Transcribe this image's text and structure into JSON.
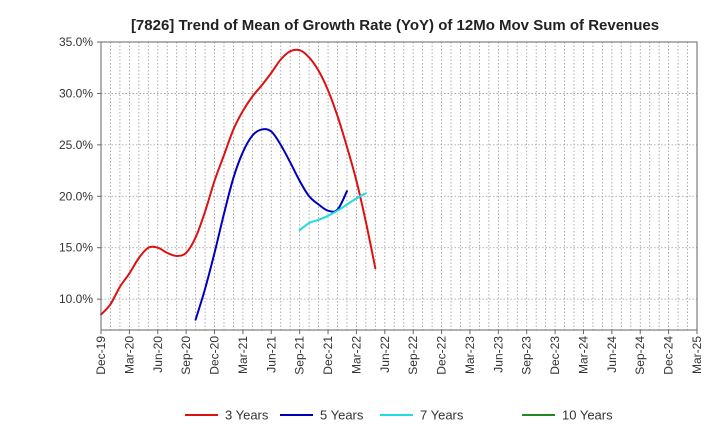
{
  "chart_data": {
    "type": "line",
    "title": "[7826]  Trend of Mean of Growth Rate (YoY) of 12Mo Mov Sum of Revenues",
    "xlabel": "",
    "ylabel": "",
    "x_tick_labels": [
      "Dec-19",
      "Mar-20",
      "Jun-20",
      "Sep-20",
      "Dec-20",
      "Mar-21",
      "Jun-21",
      "Sep-21",
      "Dec-21",
      "Mar-22",
      "Jun-22",
      "Sep-22",
      "Dec-22",
      "Mar-23",
      "Jun-23",
      "Sep-23",
      "Dec-23",
      "Mar-24",
      "Jun-24",
      "Sep-24",
      "Dec-24",
      "Mar-25"
    ],
    "y_tick_labels": [
      "10.0%",
      "15.0%",
      "20.0%",
      "25.0%",
      "30.0%",
      "35.0%"
    ],
    "y_ticks": [
      10,
      15,
      20,
      25,
      30,
      35
    ],
    "ylim": [
      7,
      35
    ],
    "grid": true,
    "legend_position": "bottom",
    "series": [
      {
        "name": "3 Years",
        "color": "#dd1111",
        "points": [
          [
            0,
            8.5
          ],
          [
            1,
            9.5
          ],
          [
            2,
            11.2
          ],
          [
            3,
            12.5
          ],
          [
            4,
            14.0
          ],
          [
            5,
            15.0
          ],
          [
            6,
            15.0
          ],
          [
            7,
            14.5
          ],
          [
            8,
            14.2
          ],
          [
            9,
            14.5
          ],
          [
            10,
            16.0
          ],
          [
            11,
            18.5
          ],
          [
            12,
            21.5
          ],
          [
            13,
            24.0
          ],
          [
            14,
            26.5
          ],
          [
            15,
            28.3
          ],
          [
            16,
            29.7
          ],
          [
            17,
            30.8
          ],
          [
            18,
            32.0
          ],
          [
            19,
            33.3
          ],
          [
            20,
            34.1
          ],
          [
            21,
            34.2
          ],
          [
            22,
            33.5
          ],
          [
            23,
            32.2
          ],
          [
            24,
            30.3
          ],
          [
            25,
            27.8
          ],
          [
            26,
            24.8
          ],
          [
            27,
            21.5
          ],
          [
            28,
            17.5
          ],
          [
            29,
            13.0
          ]
        ]
      },
      {
        "name": "5 Years",
        "color": "#0000bb",
        "points": [
          [
            10,
            8.0
          ],
          [
            11,
            11.0
          ],
          [
            12,
            14.5
          ],
          [
            13,
            18.3
          ],
          [
            14,
            21.8
          ],
          [
            15,
            24.3
          ],
          [
            16,
            25.9
          ],
          [
            17,
            26.5
          ],
          [
            18,
            26.3
          ],
          [
            19,
            25.0
          ],
          [
            20,
            23.3
          ],
          [
            21,
            21.5
          ],
          [
            22,
            20.0
          ],
          [
            23,
            19.2
          ],
          [
            24,
            18.6
          ],
          [
            25,
            18.7
          ],
          [
            26,
            20.5
          ]
        ]
      },
      {
        "name": "7 Years",
        "color": "#22dddd",
        "points": [
          [
            21,
            16.7
          ],
          [
            22,
            17.4
          ],
          [
            23,
            17.7
          ],
          [
            24,
            18.1
          ],
          [
            25,
            18.6
          ],
          [
            26,
            19.2
          ],
          [
            27,
            19.8
          ],
          [
            28,
            20.3
          ]
        ]
      },
      {
        "name": "10 Years",
        "color": "#228822",
        "points": []
      }
    ]
  }
}
